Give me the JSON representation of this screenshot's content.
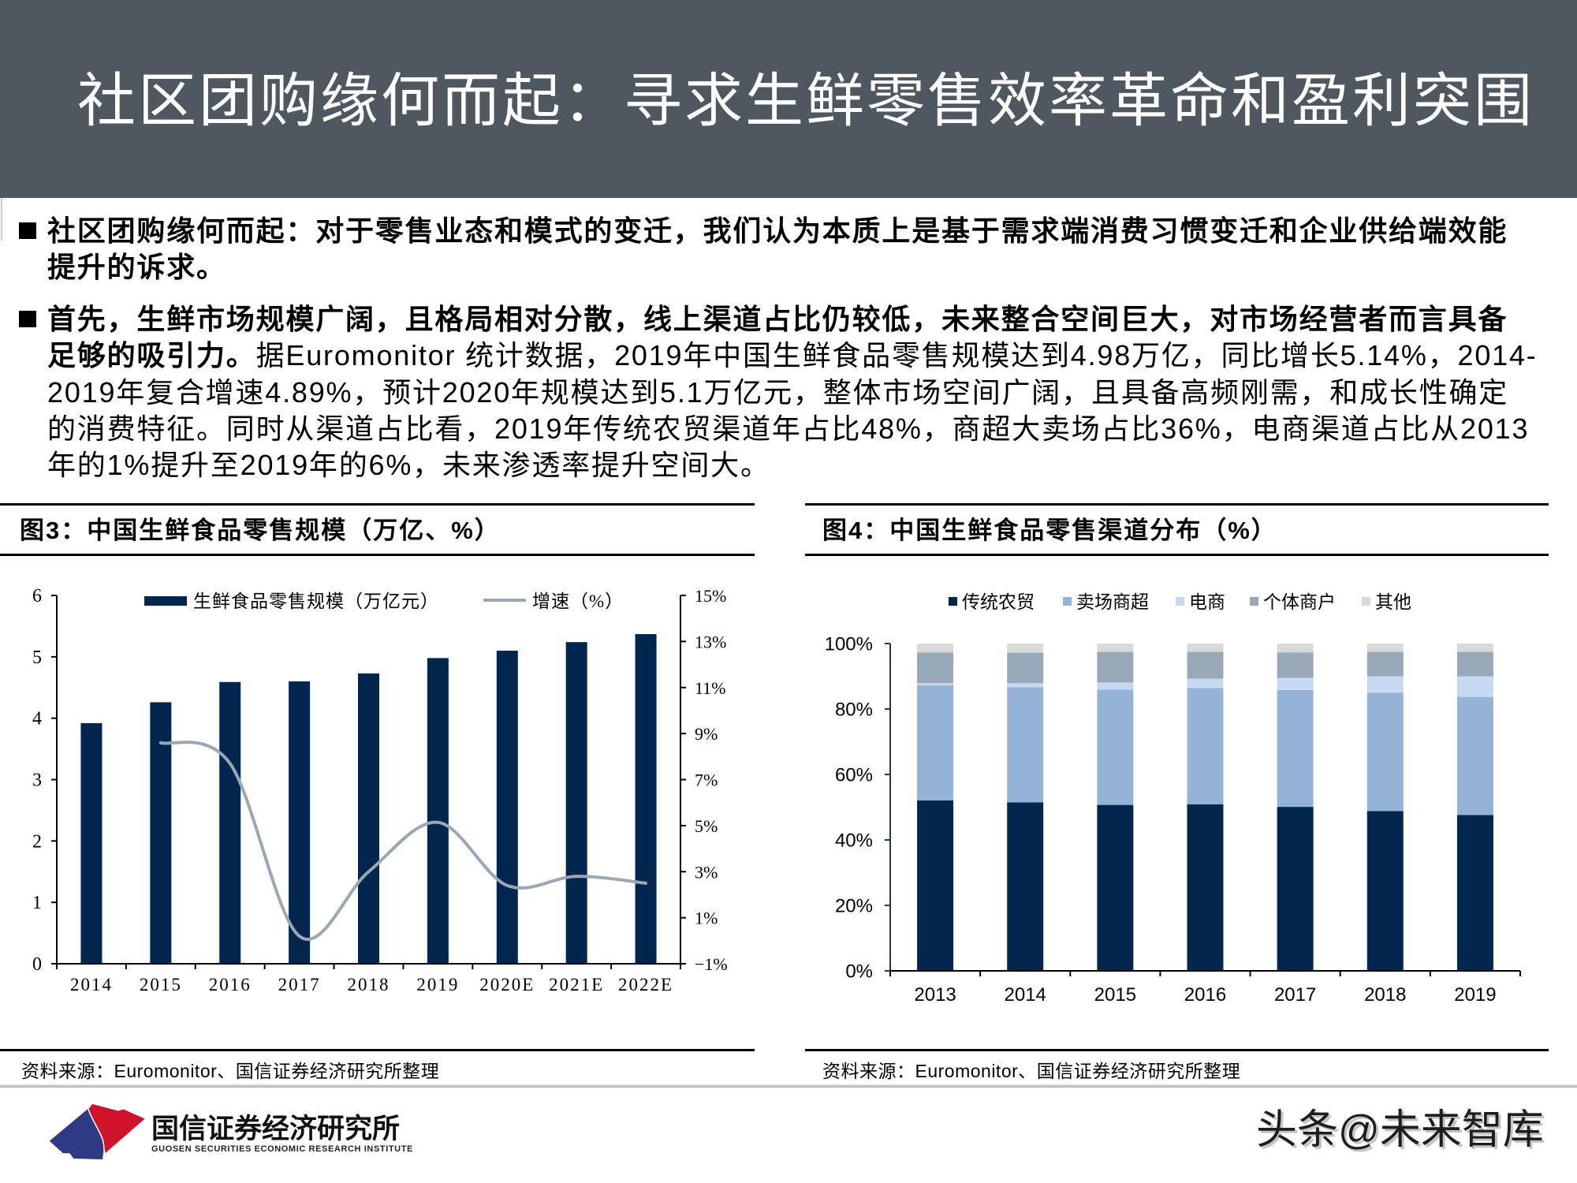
{
  "colors": {
    "header_bg": "#50585f",
    "header_text": "#ffffff",
    "bar_navy": "#03264f",
    "growth_line": "#9aa8b6",
    "logo_blue": "#2e3b82",
    "logo_red": "#d0132a"
  },
  "header": {
    "title": "社区团购缘何而起：寻求生鲜零售效率革命和盈利突围"
  },
  "bullets": [
    {
      "lines": [
        {
          "bold": "社区团购缘何而起：对于零售业态和模式的变迁，我们认为本质上是基于需求端消费习惯变迁和企业供给端效能",
          "normal": ""
        },
        {
          "bold": "提升的诉求。",
          "normal": ""
        }
      ]
    },
    {
      "lines": [
        {
          "bold": "首先，生鲜市场规模广阔，且格局相对分散，线上渠道占比仍较低，未来整合空间巨大，对市场经营者而言具备",
          "normal": ""
        },
        {
          "bold": "足够的吸引力。",
          "normal": "据Euromonitor 统计数据，2019年中国生鲜食品零售规模达到4.98万亿，同比增长5.14%，2014-"
        },
        {
          "bold": "",
          "normal": "2019年复合增速4.89%，预计2020年规模达到5.1万亿元，整体市场空间广阔，且具备高频刚需，和成长性确定"
        },
        {
          "bold": "",
          "normal": "的消费特征。同时从渠道占比看，2019年传统农贸渠道年占比48%，商超大卖场占比36%，电商渠道占比从2013"
        },
        {
          "bold": "",
          "normal": "年的1%提升至2019年的6%，未来渗透率提升空间大。"
        }
      ]
    }
  ],
  "figures": [
    {
      "title": "图3：中国生鲜食品零售规模（万亿、%）",
      "source": "资料来源：Euromonitor、国信证券经济研究所整理"
    },
    {
      "title": "图4：中国生鲜食品零售渠道分布（%）",
      "source": "资料来源：Euromonitor、国信证券经济研究所整理"
    }
  ],
  "footer": {
    "logo_cn": "国信证券经济研究所",
    "logo_en": "GUOSEN SECURITIES ECONOMIC RESEARCH INSTITUTE",
    "watermark": "头条@未来智库"
  },
  "chart_data": [
    {
      "type": "bar",
      "title": "图3：中国生鲜食品零售规模（万亿、%）",
      "categories": [
        "2014",
        "2015",
        "2016",
        "2017",
        "2018",
        "2019",
        "2020E",
        "2021E",
        "2022E"
      ],
      "series": [
        {
          "name": "生鲜食品零售规模（万亿元）",
          "type": "bar",
          "axis": "left",
          "color": "#03264f",
          "values": [
            3.92,
            4.26,
            4.59,
            4.6,
            4.73,
            4.98,
            5.1,
            5.24,
            5.37
          ]
        },
        {
          "name": "增速（%）",
          "type": "line",
          "axis": "right",
          "color": "#9aa8b6",
          "values": [
            null,
            8.6,
            7.7,
            0.2,
            3.0,
            5.14,
            2.4,
            2.8,
            2.5
          ]
        }
      ],
      "xlabel": "",
      "ylabel": "",
      "ylim": [
        0,
        6
      ],
      "yticks": [
        "0",
        "1",
        "2",
        "3",
        "4",
        "5",
        "6"
      ],
      "y2lim": [
        -1,
        15
      ],
      "y2ticks": [
        "−1%",
        "1%",
        "3%",
        "5%",
        "7%",
        "9%",
        "11%",
        "13%",
        "15%"
      ],
      "grid": false,
      "legend_position": "top"
    },
    {
      "type": "bar",
      "stacked": true,
      "title": "图4：中国生鲜食品零售渠道分布（%）",
      "categories": [
        "2013",
        "2014",
        "2015",
        "2016",
        "2017",
        "2018",
        "2019"
      ],
      "series": [
        {
          "name": "传统农贸",
          "color": "#03264f",
          "values": [
            52.1,
            51.5,
            50.7,
            50.9,
            50.1,
            48.8,
            47.6
          ]
        },
        {
          "name": "卖场商超",
          "color": "#95b3d7",
          "values": [
            35.2,
            35.2,
            35.2,
            35.5,
            35.7,
            36.2,
            36.1
          ]
        },
        {
          "name": "电商",
          "color": "#c6d9f1",
          "values": [
            0.6,
            1.2,
            2.2,
            2.9,
            3.7,
            5.0,
            6.3
          ]
        },
        {
          "name": "个体商户",
          "color": "#98a8b8",
          "values": [
            9.4,
            9.3,
            9.4,
            8.2,
            7.8,
            7.5,
            7.5
          ]
        },
        {
          "name": "其他",
          "color": "#d9d9d9",
          "values": [
            2.7,
            2.8,
            2.5,
            2.5,
            2.7,
            2.5,
            2.5
          ]
        }
      ],
      "xlabel": "",
      "ylabel": "",
      "ylim": [
        0,
        100
      ],
      "yticks": [
        "0%",
        "20%",
        "40%",
        "60%",
        "80%",
        "100%"
      ],
      "grid": false,
      "legend_position": "top"
    }
  ]
}
